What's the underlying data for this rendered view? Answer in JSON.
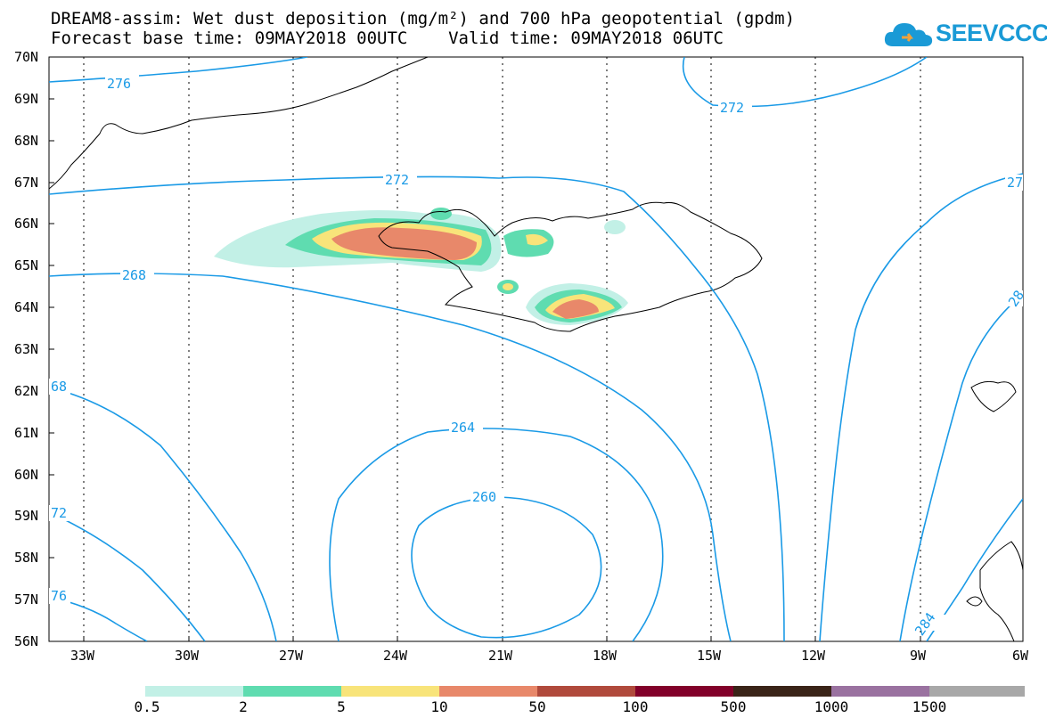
{
  "title_line1": "DREAM8-assim: Wet dust deposition (mg/m²) and 700 hPa geopotential (gpdm)",
  "title_line2": "Forecast base time: 09MAY2018 00UTC    Valid time: 09MAY2018 06UTC",
  "logo_text": "SEEVCCC",
  "map": {
    "lat_labels": [
      "70N",
      "69N",
      "68N",
      "67N",
      "66N",
      "65N",
      "64N",
      "63N",
      "62N",
      "61N",
      "60N",
      "59N",
      "58N",
      "57N",
      "56N"
    ],
    "lon_labels": [
      "33W",
      "30W",
      "27W",
      "24W",
      "21W",
      "18W",
      "15W",
      "12W",
      "9W",
      "6W"
    ],
    "contour_labels": [
      "276",
      "272",
      "272",
      "27",
      "268",
      "68",
      "264",
      "260",
      "72",
      "76",
      "284",
      "28"
    ],
    "contour_color": "#1a9ae6"
  },
  "legend": {
    "labels": [
      "0.5",
      "2",
      "5",
      "10",
      "50",
      "100",
      "500",
      "1000",
      "1500"
    ],
    "colors": [
      "#c2f0e6",
      "#5fdcb0",
      "#f8e47a",
      "#e8886a",
      "#b04a3c",
      "#82002a",
      "#3a2418",
      "#9a72a0",
      "#a8a8a8"
    ]
  }
}
